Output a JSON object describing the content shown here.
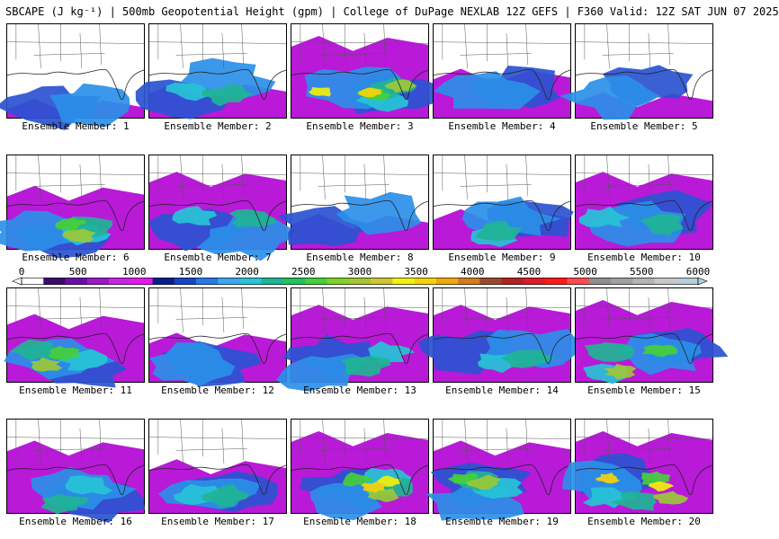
{
  "header": {
    "title": "SBCAPE (J kg⁻¹) | 500mb Geopotential Height (gpm) | College of DuPage NEXLAB 12Z GEFS | F360 Valid: 12Z SAT JUN 07 2025"
  },
  "colorbar": {
    "ticks": [
      "0",
      "500",
      "1000",
      "1500",
      "2000",
      "2500",
      "3000",
      "3500",
      "4000",
      "4500",
      "5000",
      "5500",
      "6000"
    ],
    "min": 0,
    "max": 6000,
    "colors": [
      "#ffffff",
      "#3c0b6e",
      "#6a0dad",
      "#9b19c9",
      "#cc22e6",
      "#e617f0",
      "#0a1f8c",
      "#1446c8",
      "#2678e6",
      "#3aa6f0",
      "#27c3d6",
      "#1fb495",
      "#22c45c",
      "#46cf3a",
      "#7fd22a",
      "#a6c532",
      "#ccc634",
      "#f2f00d",
      "#f7d20a",
      "#f0a80d",
      "#d47b1f",
      "#9c4a2d",
      "#b22222",
      "#e01b24",
      "#ff1a1a",
      "#ff4d4d",
      "#8f8f8f",
      "#a0a0a0",
      "#b4b4b4",
      "#c8c8c8",
      "#b8cedb"
    ]
  },
  "members": [
    {
      "label": "Ensemble Member: 1",
      "cover": 0.55,
      "max_level": 1,
      "north": 0.72
    },
    {
      "label": "Ensemble Member: 2",
      "cover": 0.6,
      "max_level": 2,
      "north": 0.55
    },
    {
      "label": "Ensemble Member: 3",
      "cover": 0.8,
      "max_level": 4,
      "north": 0.05
    },
    {
      "label": "Ensemble Member: 4",
      "cover": 0.55,
      "max_level": 1,
      "north": 0.4
    },
    {
      "label": "Ensemble Member: 5",
      "cover": 0.4,
      "max_level": 1,
      "north": 0.65
    },
    {
      "label": "Ensemble Member: 6",
      "cover": 0.7,
      "max_level": 3,
      "north": 0.25
    },
    {
      "label": "Ensemble Member: 7",
      "cover": 0.6,
      "max_level": 2,
      "north": 0.1
    },
    {
      "label": "Ensemble Member: 8",
      "cover": 0.5,
      "max_level": 1,
      "north": 0.55
    },
    {
      "label": "Ensemble Member: 9",
      "cover": 0.55,
      "max_level": 2,
      "north": 0.5
    },
    {
      "label": "Ensemble Member: 10",
      "cover": 0.7,
      "max_level": 2,
      "north": 0.1
    },
    {
      "label": "Ensemble Member: 11",
      "cover": 0.6,
      "max_level": 3,
      "north": 0.2
    },
    {
      "label": "Ensemble Member: 12",
      "cover": 0.5,
      "max_level": 1,
      "north": 0.4
    },
    {
      "label": "Ensemble Member: 13",
      "cover": 0.6,
      "max_level": 2,
      "north": 0.1
    },
    {
      "label": "Ensemble Member: 14",
      "cover": 0.75,
      "max_level": 2,
      "north": 0.1
    },
    {
      "label": "Ensemble Member: 15",
      "cover": 0.85,
      "max_level": 3,
      "north": 0.05
    },
    {
      "label": "Ensemble Member: 16",
      "cover": 0.7,
      "max_level": 2,
      "north": 0.15
    },
    {
      "label": "Ensemble Member: 17",
      "cover": 0.6,
      "max_level": 2,
      "north": 0.35
    },
    {
      "label": "Ensemble Member: 18",
      "cover": 0.85,
      "max_level": 4,
      "north": 0.05
    },
    {
      "label": "Ensemble Member: 19",
      "cover": 0.7,
      "max_level": 3,
      "north": 0.15
    },
    {
      "label": "Ensemble Member: 20",
      "cover": 0.85,
      "max_level": 4,
      "north": 0.05
    }
  ]
}
